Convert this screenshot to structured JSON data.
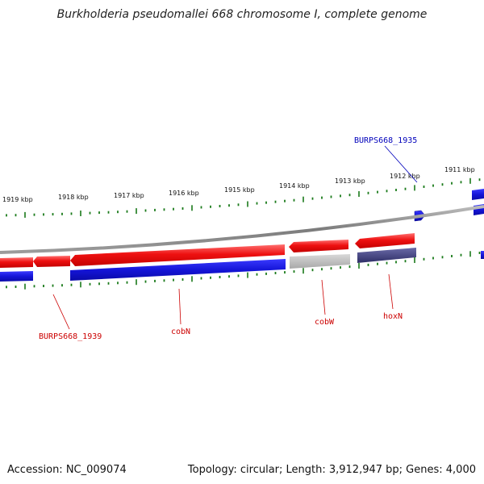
{
  "title": "Burkholderia pseudomallei 668 chromosome I, complete genome",
  "footer": {
    "accession": "Accession: NC_009074",
    "summary": "Topology: circular; Length: 3,912,947 bp; Genes: 4,000"
  },
  "colors": {
    "forward_gene": "#ee1111",
    "reverse_gene": "#1515d8",
    "gray_gene": "#c0c0c0",
    "purple_gene": "#47477e",
    "backbone": "#888888",
    "tick": "#1a7a1a",
    "label_red": "#cc0000",
    "label_blue": "#0000bb"
  },
  "scale_ticks": [
    "1911 kbp",
    "1912 kbp",
    "1913 kbp",
    "1914 kbp",
    "1915 kbp",
    "1916 kbp",
    "1917 kbp",
    "1918 kbp",
    "1919 kbp"
  ],
  "gene_labels": [
    {
      "name": "BURPS668_1935",
      "color": "blue"
    },
    {
      "name": "BURPS668_1939",
      "color": "red"
    },
    {
      "name": "cobN",
      "color": "red"
    },
    {
      "name": "cobW",
      "color": "red"
    },
    {
      "name": "hoxN",
      "color": "red"
    }
  ]
}
